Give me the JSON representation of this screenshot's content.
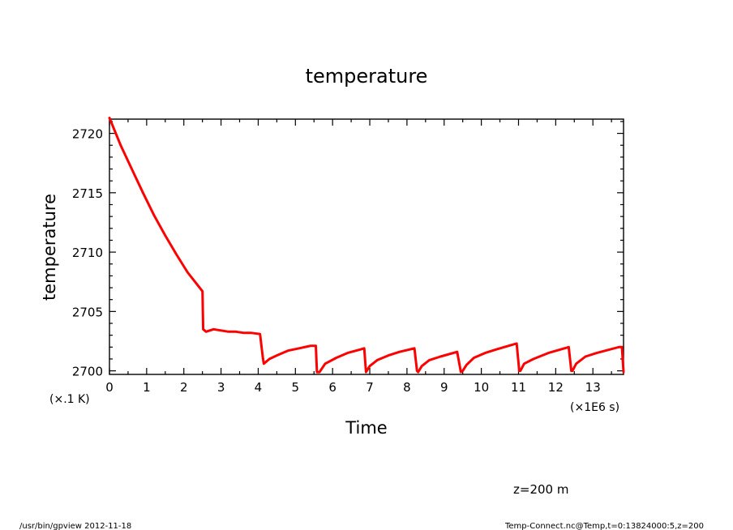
{
  "chart_data": {
    "type": "line",
    "title": "temperature",
    "xlabel": "Time",
    "ylabel": "temperature",
    "x_unit_label": "(×1E6 s)",
    "y_unit_label": "(×.1 K)",
    "xlim": [
      0,
      13.824
    ],
    "ylim": [
      2699.7,
      2721.2
    ],
    "x_ticks": [
      0,
      1,
      2,
      3,
      4,
      5,
      6,
      7,
      8,
      9,
      10,
      11,
      12,
      13
    ],
    "y_ticks": [
      2700,
      2705,
      2710,
      2715,
      2720
    ],
    "grid": false,
    "series": [
      {
        "color": "#ff0000",
        "x": [
          0,
          0.3,
          0.6,
          0.9,
          1.2,
          1.5,
          1.8,
          2.1,
          2.4,
          2.5,
          2.52,
          2.6,
          2.8,
          3.0,
          3.2,
          3.4,
          3.6,
          3.8,
          4.05,
          4.12,
          4.15,
          4.3,
          4.5,
          4.8,
          5.1,
          5.4,
          5.55,
          5.58,
          5.65,
          5.8,
          6.1,
          6.4,
          6.75,
          6.85,
          6.9,
          7.0,
          7.2,
          7.5,
          7.8,
          8.2,
          8.27,
          8.3,
          8.4,
          8.6,
          8.9,
          9.35,
          9.45,
          9.5,
          9.6,
          9.8,
          10.1,
          10.4,
          10.95,
          11.02,
          11.05,
          11.15,
          11.4,
          11.8,
          12.35,
          12.42,
          12.45,
          12.55,
          12.8,
          13.1,
          13.7,
          13.78,
          13.824
        ],
        "y": [
          2721.3,
          2719.0,
          2717.0,
          2715.0,
          2713.1,
          2711.4,
          2709.8,
          2708.3,
          2707.1,
          2706.7,
          2703.5,
          2703.3,
          2703.5,
          2703.4,
          2703.3,
          2703.3,
          2703.2,
          2703.2,
          2703.1,
          2701.2,
          2700.6,
          2701.0,
          2701.3,
          2701.7,
          2701.9,
          2702.1,
          2702.1,
          2699.9,
          2699.9,
          2700.6,
          2701.1,
          2701.5,
          2701.8,
          2701.9,
          2699.9,
          2700.4,
          2700.9,
          2701.3,
          2701.6,
          2701.9,
          2700.0,
          2699.9,
          2700.4,
          2700.9,
          2701.2,
          2701.6,
          2699.9,
          2700.0,
          2700.5,
          2701.1,
          2701.5,
          2701.8,
          2702.3,
          2700.0,
          2700.0,
          2700.6,
          2701.0,
          2701.5,
          2702.0,
          2700.0,
          2700.0,
          2700.6,
          2701.2,
          2701.5,
          2702.0,
          2702.0,
          2699.9
        ]
      }
    ]
  },
  "annotations": {
    "z_label": "z=200 m",
    "footer_left": "/usr/bin/gpview   2012-11-18",
    "footer_right": "Temp-Connect.nc@Temp,t=0:13824000:5,z=200"
  }
}
